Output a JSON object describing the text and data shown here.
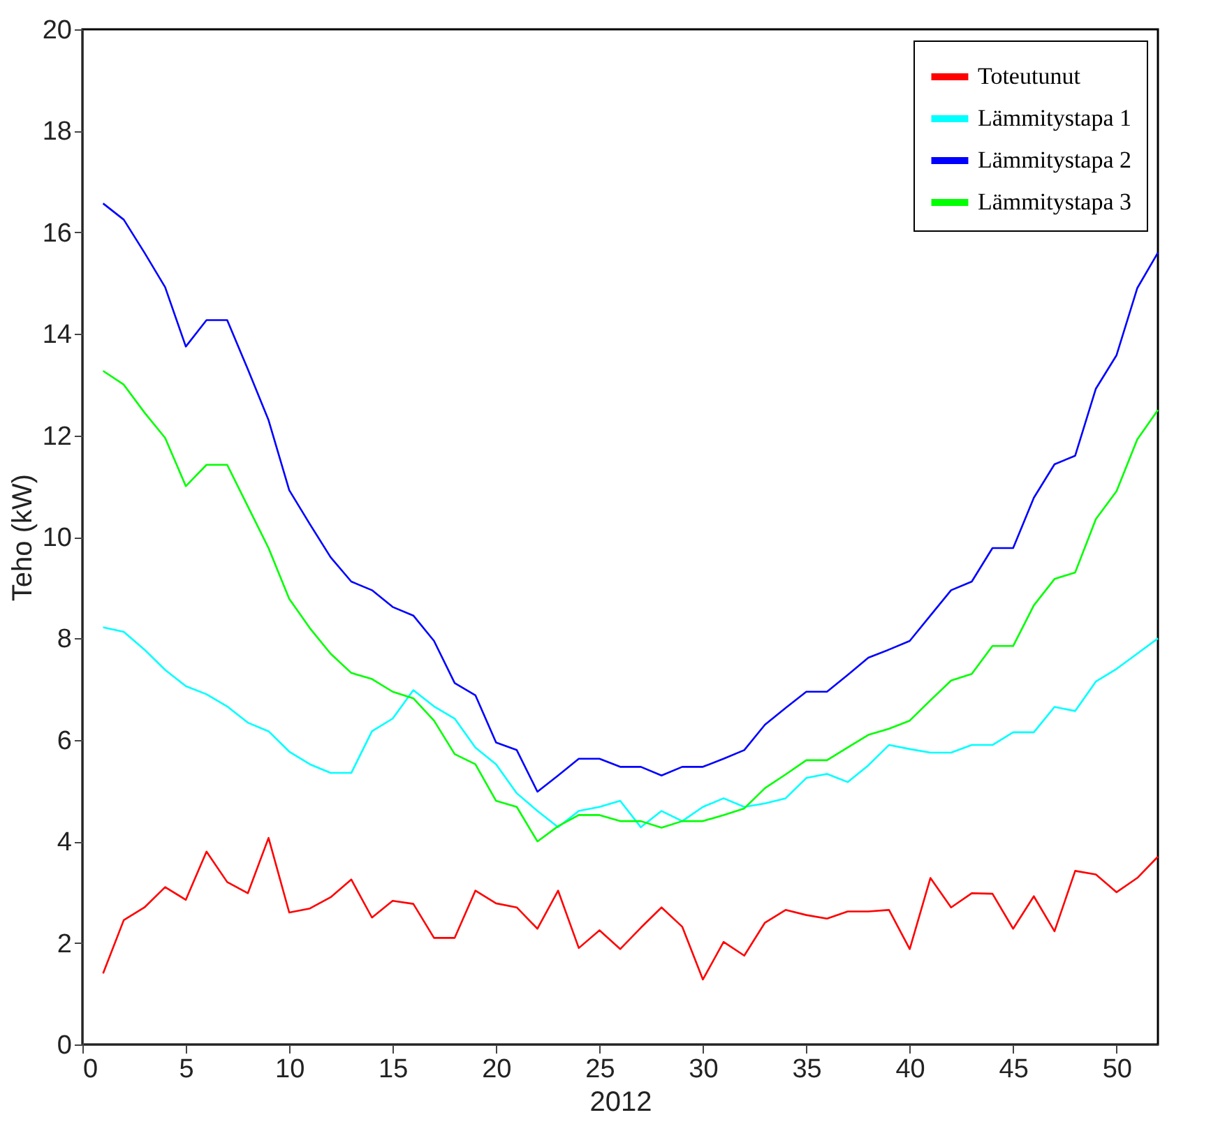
{
  "chart_data": {
    "type": "line",
    "xlabel": "2012",
    "ylabel": "Teho (kW)",
    "x": [
      1,
      2,
      3,
      4,
      5,
      6,
      7,
      8,
      9,
      10,
      11,
      12,
      13,
      14,
      15,
      16,
      17,
      18,
      19,
      20,
      21,
      22,
      23,
      24,
      25,
      26,
      27,
      28,
      29,
      30,
      31,
      32,
      33,
      34,
      35,
      36,
      37,
      38,
      39,
      40,
      41,
      42,
      43,
      44,
      45,
      46,
      47,
      48,
      49,
      50,
      51,
      52
    ],
    "series": [
      {
        "name": "Toteutunut",
        "color": "#ff0000",
        "values": [
          1.4,
          2.45,
          2.7,
          3.1,
          2.85,
          3.8,
          3.2,
          2.98,
          4.07,
          2.6,
          2.68,
          2.9,
          3.25,
          2.5,
          2.83,
          2.77,
          2.1,
          2.1,
          3.03,
          2.78,
          2.7,
          2.28,
          3.03,
          1.9,
          2.25,
          1.88,
          2.3,
          2.7,
          2.32,
          1.28,
          2.02,
          1.75,
          2.4,
          2.65,
          2.55,
          2.48,
          2.62,
          2.62,
          2.65,
          1.88,
          3.28,
          2.7,
          2.98,
          2.97,
          2.28,
          2.92,
          2.23,
          3.42,
          3.35,
          3.0,
          3.28,
          3.7
        ]
      },
      {
        "name": "Lämmitystapa 1",
        "color": "#00ffff",
        "values": [
          8.22,
          8.13,
          7.78,
          7.38,
          7.06,
          6.9,
          6.66,
          6.34,
          6.17,
          5.77,
          5.52,
          5.35,
          5.35,
          6.17,
          6.42,
          6.98,
          6.66,
          6.42,
          5.85,
          5.52,
          4.95,
          4.6,
          4.28,
          4.6,
          4.68,
          4.8,
          4.28,
          4.6,
          4.4,
          4.68,
          4.85,
          4.68,
          4.75,
          4.85,
          5.25,
          5.33,
          5.17,
          5.5,
          5.9,
          5.82,
          5.75,
          5.75,
          5.9,
          5.9,
          6.15,
          6.15,
          6.65,
          6.57,
          7.15,
          7.4,
          7.7,
          8.0
        ]
      },
      {
        "name": "Lämmitystapa 2",
        "color": "#0000ff",
        "values": [
          16.57,
          16.25,
          15.6,
          14.92,
          13.75,
          14.27,
          14.27,
          13.3,
          12.3,
          10.92,
          10.25,
          9.6,
          9.12,
          8.95,
          8.62,
          8.45,
          7.95,
          7.12,
          6.88,
          5.95,
          5.8,
          4.98,
          5.3,
          5.63,
          5.63,
          5.47,
          5.47,
          5.3,
          5.47,
          5.47,
          5.63,
          5.8,
          6.3,
          6.63,
          6.95,
          6.95,
          7.28,
          7.62,
          7.78,
          7.95,
          8.45,
          8.95,
          9.12,
          9.78,
          9.78,
          10.77,
          11.43,
          11.6,
          12.92,
          13.58,
          14.9,
          15.6
        ]
      },
      {
        "name": "Lämmitystapa 3",
        "color": "#00ff00",
        "values": [
          13.27,
          13.0,
          12.45,
          11.95,
          11.0,
          11.42,
          11.42,
          10.6,
          9.78,
          8.78,
          8.2,
          7.7,
          7.32,
          7.2,
          6.95,
          6.82,
          6.38,
          5.72,
          5.52,
          4.8,
          4.68,
          4.0,
          4.3,
          4.52,
          4.52,
          4.4,
          4.4,
          4.27,
          4.4,
          4.4,
          4.52,
          4.65,
          5.05,
          5.32,
          5.6,
          5.6,
          5.85,
          6.1,
          6.22,
          6.38,
          6.78,
          7.17,
          7.3,
          7.85,
          7.85,
          8.65,
          9.17,
          9.3,
          10.35,
          10.9,
          11.92,
          12.5
        ]
      }
    ],
    "xlim": [
      0,
      52
    ],
    "xticks": [
      0,
      5,
      10,
      15,
      20,
      25,
      30,
      35,
      40,
      45,
      50
    ],
    "ylim": [
      0,
      20
    ],
    "yticks": [
      0,
      2,
      4,
      6,
      8,
      10,
      12,
      14,
      16,
      18,
      20
    ],
    "grid": false,
    "legend": "top right",
    "marker": "none",
    "line_style": "solid"
  }
}
